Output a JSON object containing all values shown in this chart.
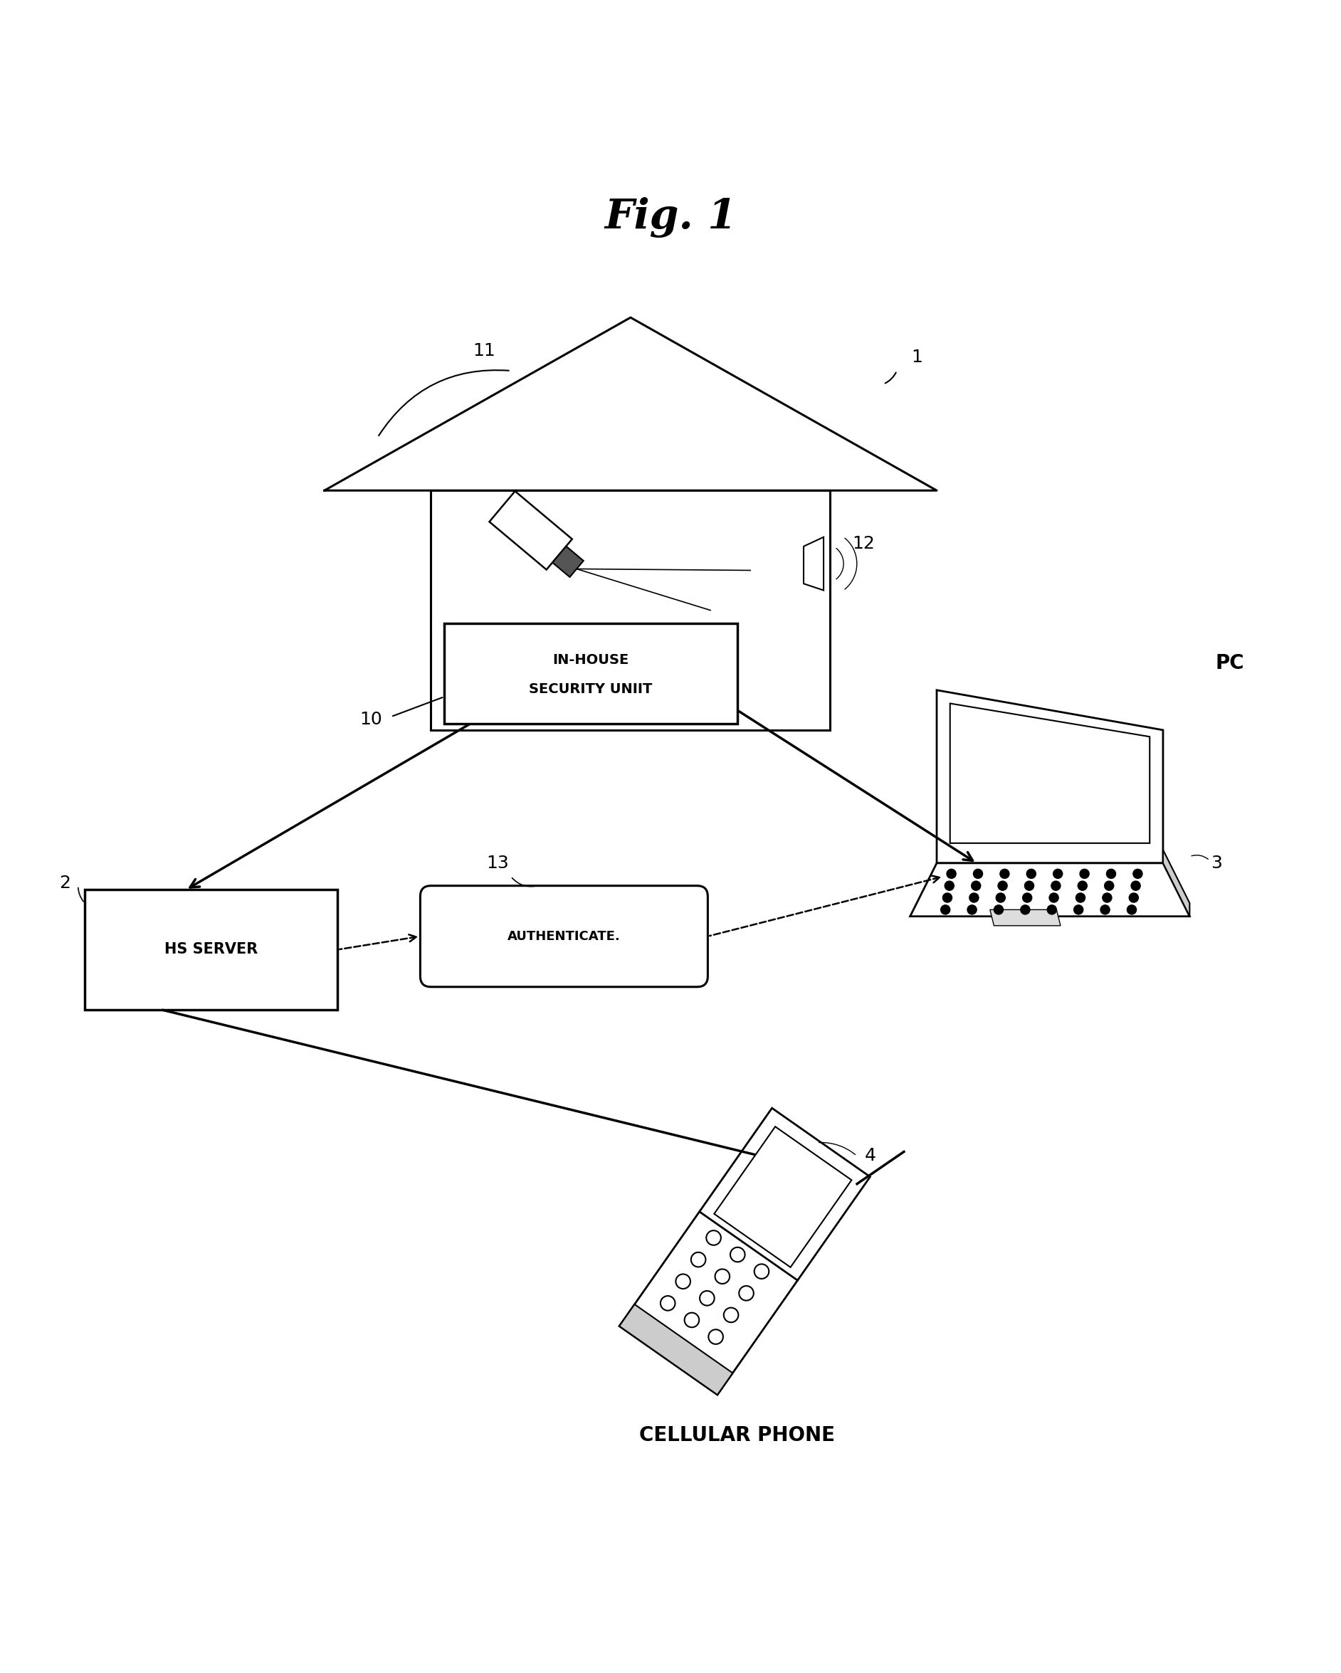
{
  "title": "Fig. 1",
  "background_color": "#ffffff",
  "fig_width": 18.84,
  "fig_height": 23.51,
  "labels": {
    "house_label": "1",
    "camera_label": "11",
    "sensor_label": "12",
    "security_unit_label": "10",
    "security_unit_text1": "IN-HOUSE",
    "security_unit_text2": "SECURITY UNIIT",
    "hs_server_label": "2",
    "hs_server_text": "HS SERVER",
    "pc_label": "3",
    "pc_text": "PC",
    "auth_label": "13",
    "auth_text": "AUTHENTICATE.",
    "phone_label": "4",
    "phone_text": "CELLULAR PHONE"
  }
}
